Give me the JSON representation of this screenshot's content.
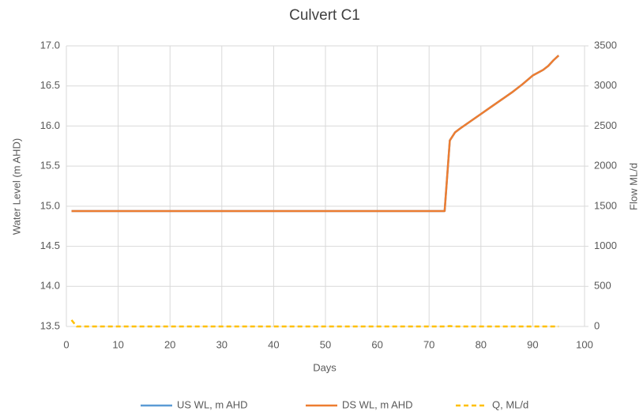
{
  "chart_data": {
    "type": "line",
    "title": "Culvert C1",
    "x_label": "Days",
    "y_label": "Water Level (m AHD)",
    "y2_label": "Flow ML/d",
    "x": [
      1,
      2,
      73,
      74,
      75,
      76,
      78,
      80,
      82,
      84,
      86,
      88,
      90,
      92,
      93,
      94,
      95
    ],
    "series": [
      {
        "name": "US WL, m AHD",
        "color": "#5b9bd5",
        "values": [
          14.94,
          14.94,
          14.94,
          15.82,
          15.92,
          15.97,
          16.06,
          16.15,
          16.24,
          16.33,
          16.42,
          16.52,
          16.63,
          16.7,
          16.75,
          16.82,
          16.88
        ]
      },
      {
        "name": "DS WL, m AHD",
        "color": "#ed7d31",
        "values": [
          14.94,
          14.94,
          14.94,
          15.82,
          15.92,
          15.97,
          16.06,
          16.15,
          16.24,
          16.33,
          16.42,
          16.52,
          16.63,
          16.7,
          16.75,
          16.82,
          16.88
        ]
      },
      {
        "name": "Q, ML/d",
        "color": "#ffc000",
        "axis": "y2",
        "dashed": true,
        "values": [
          80,
          0,
          0,
          5,
          0,
          0,
          0,
          0,
          0,
          0,
          0,
          0,
          0,
          0,
          0,
          0,
          0
        ]
      }
    ],
    "xlim": [
      0,
      100
    ],
    "xticks": [
      0,
      10,
      20,
      30,
      40,
      50,
      60,
      70,
      80,
      90,
      100
    ],
    "ylim": [
      13.5,
      17
    ],
    "yticks": [
      13.5,
      {
        "value": 14,
        "label": "14.0"
      },
      14.5,
      {
        "value": 15,
        "label": "15.0"
      },
      15.5,
      {
        "value": 16,
        "label": "16.0"
      },
      16.5,
      {
        "value": 17,
        "label": "17.0"
      }
    ],
    "y2lim": [
      0,
      3500
    ],
    "y2ticks": [
      0,
      500,
      1000,
      1500,
      2000,
      2500,
      3000,
      3500
    ],
    "grid": true,
    "legend": "bottom"
  }
}
